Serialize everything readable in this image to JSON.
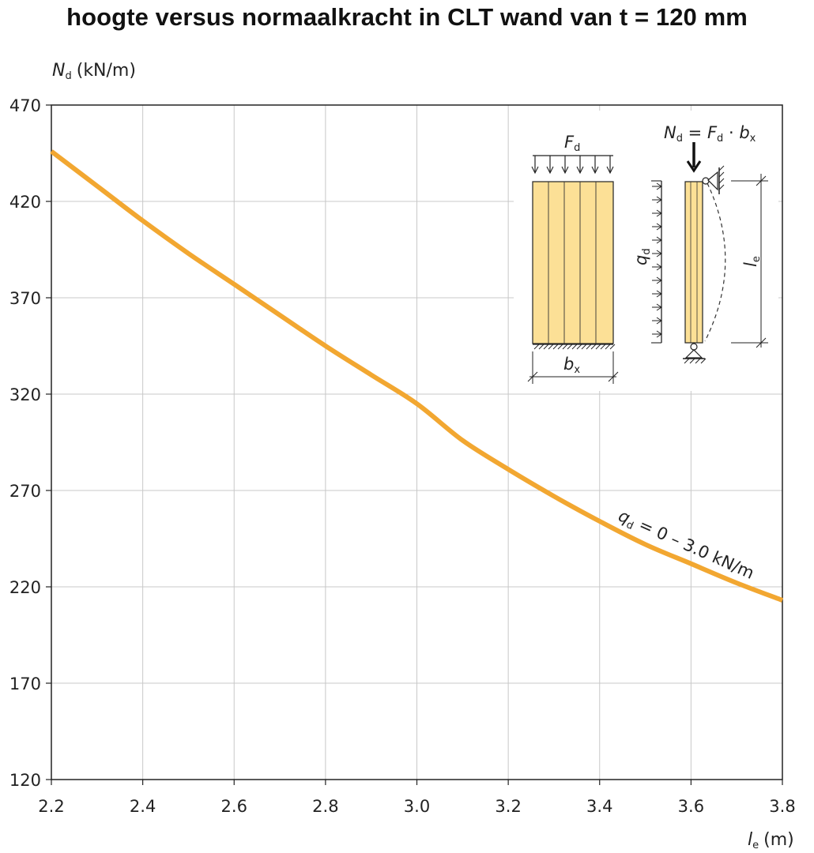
{
  "title": "hoogte versus normaalkracht in CLT wand van t = 120 mm",
  "chart_data": {
    "type": "line",
    "title": "hoogte versus normaalkracht in CLT wand van t = 120 mm",
    "ylabel": {
      "symbol": "N",
      "sub": "d",
      "unit": "(kN/m)"
    },
    "xlabel": {
      "symbol": "l",
      "sub": "e",
      "unit": "(m)"
    },
    "xlim": [
      2.2,
      3.8
    ],
    "ylim": [
      120,
      470
    ],
    "x_ticks": [
      "2.2",
      "2.4",
      "2.6",
      "2.8",
      "3.0",
      "3.2",
      "3.4",
      "3.6",
      "3.8"
    ],
    "y_ticks": [
      "470",
      "420",
      "370",
      "320",
      "270",
      "220",
      "170",
      "120"
    ],
    "grid": true,
    "series": [
      {
        "color": "#F2A731",
        "x": [
          2.2,
          2.3,
          2.4,
          2.5,
          2.6,
          2.7,
          2.8,
          2.9,
          3.0,
          3.1,
          3.2,
          3.3,
          3.4,
          3.5,
          3.6,
          3.7,
          3.8
        ],
        "y": [
          446,
          428,
          410,
          393,
          377,
          361,
          345,
          330,
          315,
          296,
          281,
          267,
          254,
          242,
          232,
          222,
          213
        ]
      }
    ],
    "annotation": "q_d = 0 – 3.0 kN/m",
    "annotation_parts": {
      "symbol": "q",
      "sub": "d",
      "rest": " = 0 – 3.0 kN/m"
    }
  },
  "inset": {
    "load_label": {
      "symbol": "F",
      "sub": "d"
    },
    "width_label": {
      "symbol": "b",
      "sub": "x"
    },
    "lateral_label": {
      "symbol": "q",
      "sub": "d"
    },
    "normal_label": {
      "n": "N",
      "n_sub": "d",
      "eq": " = ",
      "f": "F",
      "f_sub": "d",
      "dot": " · ",
      "b": "b",
      "b_sub": "x"
    },
    "height_label": {
      "symbol": "l",
      "sub": "e"
    },
    "wood_color": "#FCE096"
  }
}
